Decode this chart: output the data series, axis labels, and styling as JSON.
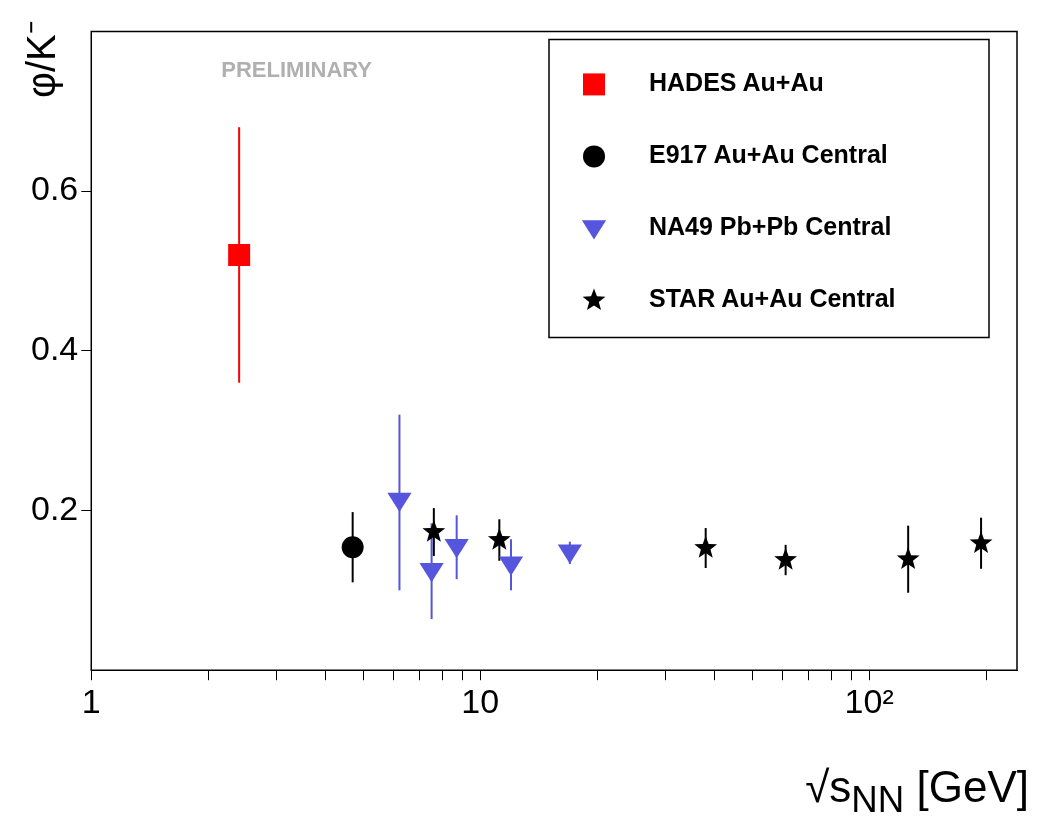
{
  "chart_data": {
    "type": "scatter",
    "xlabel": "√s$_{NN}$ [GeV]",
    "ylabel": "φ/K⁻",
    "annotations": [
      "PRELIMINARY"
    ],
    "log": "x",
    "xlim": [
      1,
      240
    ],
    "ylim": [
      0,
      0.8
    ],
    "xticks": [
      1,
      {
        "value": 2,
        "label": null
      },
      {
        "value": 3,
        "label": null
      },
      {
        "value": 4,
        "label": null
      },
      {
        "value": 5,
        "label": null
      },
      {
        "value": 6,
        "label": null
      },
      {
        "value": 7,
        "label": null
      },
      {
        "value": 8,
        "label": null
      },
      {
        "value": 9,
        "label": null
      },
      10,
      {
        "value": 20,
        "label": null
      },
      {
        "value": 30,
        "label": null
      },
      {
        "value": 40,
        "label": null
      },
      {
        "value": 50,
        "label": null
      },
      {
        "value": 60,
        "label": null
      },
      {
        "value": 70,
        "label": null
      },
      {
        "value": 80,
        "label": null
      },
      {
        "value": 90,
        "label": null
      },
      {
        "value": 100,
        "label": "10²"
      },
      {
        "value": 200,
        "label": null
      }
    ],
    "yticks": [
      0.2,
      0.4,
      0.6
    ],
    "legend": "top right",
    "series": [
      {
        "name": "HADES Au+Au",
        "color": "#ff0000",
        "marker": "square",
        "x": [
          2.4
        ],
        "values": [
          0.52
        ],
        "errors": [
          [
            0.36,
            0.68
          ]
        ]
      },
      {
        "name": "E917 Au+Au Central",
        "color": "#000000",
        "marker": "circle",
        "x": [
          4.7
        ],
        "values": [
          0.154
        ],
        "errors": [
          0.044
        ]
      },
      {
        "name": "NA49 Pb+Pb Central",
        "color": "#5555dd",
        "marker": "triangle",
        "x": [
          6.2,
          7.5,
          8.7,
          12,
          17
        ],
        "values": [
          0.212,
          0.124,
          0.154,
          0.132,
          0.147
        ],
        "errors": [
          [
            0.1,
            0.32
          ],
          0.06,
          0.04,
          0.032,
          0.014
        ]
      },
      {
        "name": "STAR Au+Au Central",
        "color": "#000000",
        "marker": "star",
        "x": [
          7.6,
          11.2,
          38,
          61,
          126,
          194
        ],
        "values": [
          0.173,
          0.163,
          0.153,
          0.138,
          0.139,
          0.159
        ],
        "errors": [
          0.03,
          0.026,
          0.025,
          0.019,
          0.042,
          0.032
        ]
      }
    ]
  }
}
